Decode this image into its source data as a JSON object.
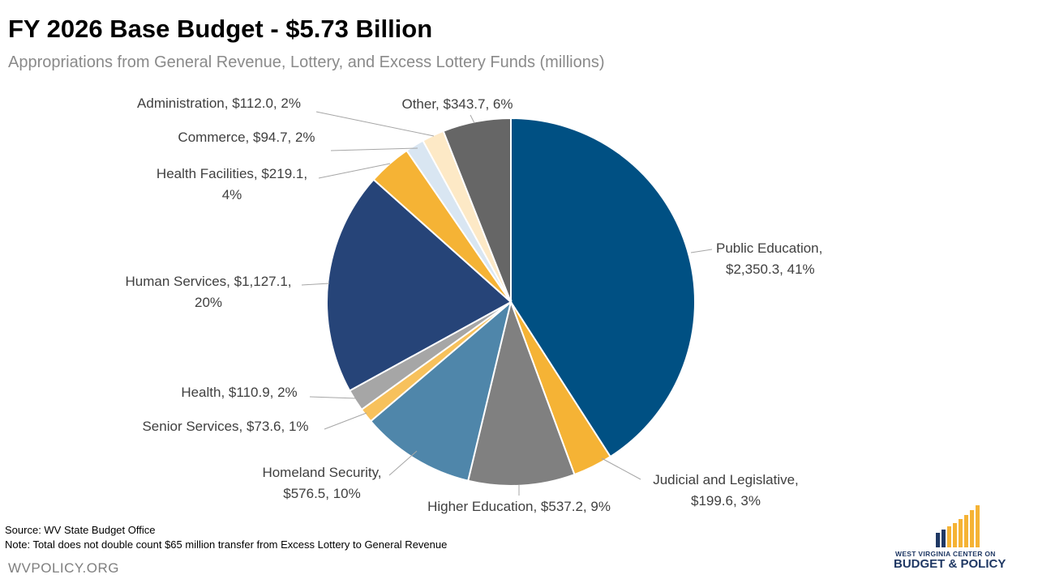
{
  "chart_data": {
    "type": "pie",
    "title": "FY 2026 Base Budget - $5.73 Billion",
    "subtitle": "Appropriations from General Revenue, Lottery, and Excess Lottery Funds (millions)",
    "slices": [
      {
        "label_lines": [
          "Public Education,",
          "$2,350.3, 41%"
        ],
        "value": 2350.3,
        "color": "#005083"
      },
      {
        "label_lines": [
          "Judicial and Legislative,",
          "$199.6, 3%"
        ],
        "value": 199.6,
        "color": "#f5b335"
      },
      {
        "label_lines": [
          "Higher Education, $537.2, 9%"
        ],
        "value": 537.2,
        "color": "#808080"
      },
      {
        "label_lines": [
          "Homeland Security,",
          "$576.5, 10%"
        ],
        "value": 576.5,
        "color": "#4f86aa"
      },
      {
        "label_lines": [
          "Senior Services, $73.6, 1%"
        ],
        "value": 73.6,
        "color": "#f7c15c"
      },
      {
        "label_lines": [
          "Health, $110.9, 2%"
        ],
        "value": 110.9,
        "color": "#a6a6a6"
      },
      {
        "label_lines": [
          "Human Services, $1,127.1,",
          "20%"
        ],
        "value": 1127.1,
        "color": "#264478"
      },
      {
        "label_lines": [
          "Health Facilities, $219.1,",
          "4%"
        ],
        "value": 219.1,
        "color": "#f5b335"
      },
      {
        "label_lines": [
          "Commerce, $94.7, 2%"
        ],
        "value": 94.7,
        "color": "#d9e6f2"
      },
      {
        "label_lines": [
          "Administration, $112.0, 2%"
        ],
        "value": 112.0,
        "color": "#fde9c6"
      },
      {
        "label_lines": [
          "Other, $343.7, 6%"
        ],
        "value": 343.7,
        "color": "#666666"
      }
    ]
  },
  "footer": {
    "source": "Source: WV State Budget Office",
    "note": "Note: Total does not double count $65 million transfer from Excess Lottery to General Revenue",
    "site": "WVPOLICY.ORG"
  },
  "logo": {
    "line1": "WEST VIRGINIA CENTER ON",
    "line2": "BUDGET & POLICY",
    "bar_colors": [
      "#1f3864",
      "#1f3864",
      "#f5b335",
      "#f5b335",
      "#f5b335",
      "#f5b335",
      "#f5b335",
      "#f5b335"
    ]
  }
}
